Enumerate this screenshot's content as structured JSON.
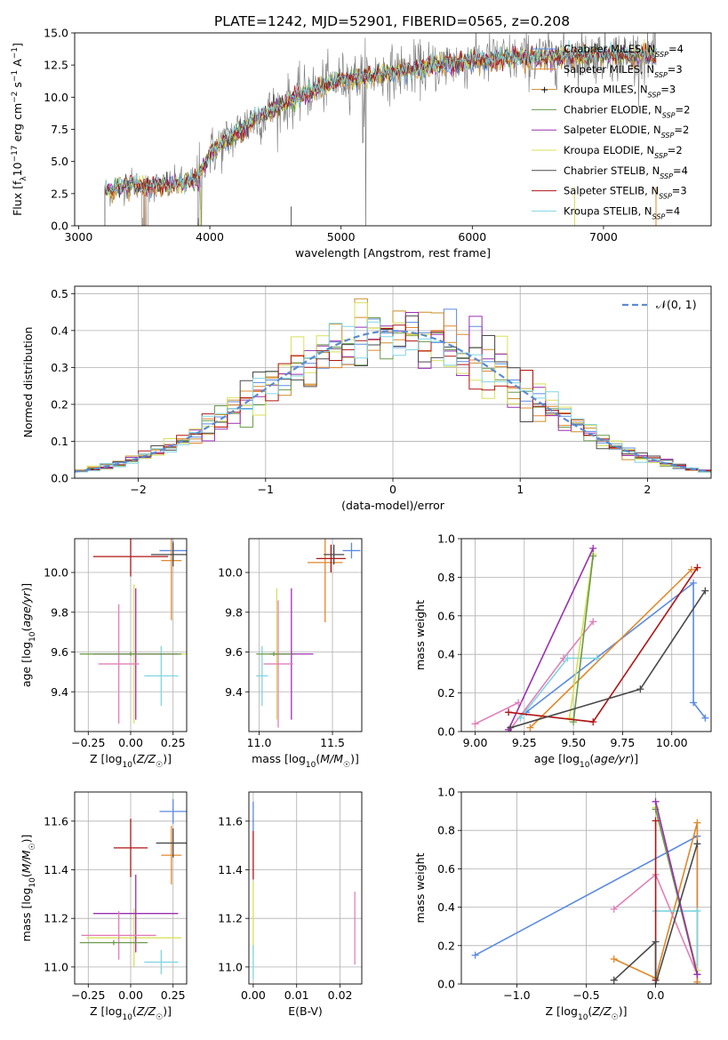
{
  "figure": {
    "title": "PLATE=1242, MJD=52901, FIBERID=0565, z=0.208"
  },
  "legend": {
    "series": [
      {
        "label": "Chabrier MILES, N",
        "sub": "SSP",
        "eq": "=4",
        "color": "#5b8be0"
      },
      {
        "label": "Salpeter MILES, N",
        "sub": "SSP",
        "eq": "=3",
        "color": "#e0882b"
      },
      {
        "label": "Kroupa MILES, N",
        "sub": "SSP",
        "eq": "=3",
        "color": "#c98e2a"
      },
      {
        "label": "Chabrier ELODIE, N",
        "sub": "SSP",
        "eq": "=2",
        "color": "#6a9a4a"
      },
      {
        "label": "Salpeter ELODIE, N",
        "sub": "SSP",
        "eq": "=2",
        "color": "#9b30b0"
      },
      {
        "label": "Kroupa ELODIE, N",
        "sub": "SSP",
        "eq": "=2",
        "color": "#d8e05a"
      },
      {
        "label": "Chabrier STELIB, N",
        "sub": "SSP",
        "eq": "=4",
        "color": "#4a4a4a"
      },
      {
        "label": "Salpeter STELIB, N",
        "sub": "SSP",
        "eq": "=3",
        "color": "#b01515"
      },
      {
        "label": "Kroupa STELIB, N",
        "sub": "SSP",
        "eq": "=4",
        "color": "#7fd6e0"
      }
    ],
    "gauss_label": "𝒩(0, 1)"
  },
  "chart_data": [
    {
      "id": "spectrum",
      "type": "line",
      "xlabel": "wavelength [Angstrom, rest frame]",
      "ylabel": "Flux [f_λ 10^-17 erg cm^-2 s^-1 A^-1]",
      "xlim": [
        2970,
        7820
      ],
      "ylim": [
        0,
        15
      ],
      "xticks": [
        3000,
        4000,
        5000,
        6000,
        7000
      ],
      "yticks": [
        0.0,
        2.5,
        5.0,
        7.5,
        10.0,
        12.5,
        15.0
      ],
      "data_range": [
        3200,
        7400
      ],
      "model_trend": {
        "x": [
          3200,
          3400,
          3500,
          3700,
          3900,
          4000,
          4300,
          4700,
          5000,
          5300,
          5700,
          6000,
          6300,
          6600,
          7000,
          7400
        ],
        "y": [
          2.6,
          3.3,
          3.0,
          3.2,
          3.6,
          5.6,
          8.0,
          10.2,
          11.4,
          11.8,
          12.4,
          12.8,
          13.0,
          13.1,
          13.3,
          13.2
        ]
      },
      "grid": false
    },
    {
      "id": "residuals",
      "type": "histogram",
      "xlabel": "(data-model)/error",
      "ylabel": "Normed distribution",
      "xlim": [
        -2.5,
        2.5
      ],
      "ylim": [
        0,
        0.52
      ],
      "xticks": [
        -2,
        -1,
        0,
        1,
        2
      ],
      "yticks": [
        0.0,
        0.1,
        0.2,
        0.3,
        0.4,
        0.5
      ],
      "bin_width": 0.1,
      "gaussian": {
        "mean": 0,
        "sigma": 1
      },
      "grid": true,
      "legend_position": "top-right"
    },
    {
      "id": "age-vs-Z",
      "type": "errorbar",
      "xlabel": "Z [log10(Z/Z☉)]",
      "ylabel": "age  [log10(age/yr)]",
      "xlim": [
        -0.33,
        0.33
      ],
      "ylim": [
        9.2,
        10.17
      ],
      "xticks": [
        -0.25,
        0.0,
        0.25
      ],
      "xtick_labels": [
        "−0.25",
        "0.00",
        "0.25"
      ],
      "yticks": [
        9.4,
        9.6,
        9.8,
        10.0
      ],
      "points": [
        {
          "x": 0.25,
          "y": 10.11,
          "xerr": 0.08,
          "yerr": 0.05,
          "color": "#5b8be0"
        },
        {
          "x": 0.24,
          "y": 10.06,
          "xerr": 0.06,
          "yerr": 0.3,
          "color": "#e0882b"
        },
        {
          "x": 0.18,
          "y": 9.48,
          "xerr": 0.1,
          "yerr": 0.15,
          "color": "#7fd6e0"
        },
        {
          "x": 0.02,
          "y": 9.59,
          "xerr": 0.32,
          "yerr": 0.35,
          "color": "#d8e05a"
        },
        {
          "x": 0.03,
          "y": 9.59,
          "xerr": 0.25,
          "yerr": 0.33,
          "color": "#9b30b0"
        },
        {
          "x": -0.07,
          "y": 9.54,
          "xerr": 0.12,
          "yerr": 0.3,
          "color": "#e080b8"
        },
        {
          "x": 0.0,
          "y": 9.59,
          "xerr": 0.3,
          "yerr": 0.01,
          "color": "#6a9a4a"
        },
        {
          "x": 0.0,
          "y": 10.08,
          "xerr": 0.22,
          "yerr": 0.1,
          "color": "#b01515"
        },
        {
          "x": 0.25,
          "y": 10.09,
          "xerr": 0.13,
          "yerr": 0.06,
          "color": "#4a4a4a"
        }
      ],
      "grid": true
    },
    {
      "id": "age-vs-mass",
      "type": "errorbar",
      "xlabel": "mass [log10(M/M☉)]",
      "xlim": [
        10.93,
        11.7
      ],
      "ylim": [
        9.2,
        10.17
      ],
      "xticks": [
        11.0,
        11.5
      ],
      "yticks": [
        9.4,
        9.6,
        9.8,
        10.0
      ],
      "points": [
        {
          "x": 11.63,
          "y": 10.11,
          "xerr": 0.06,
          "yerr": 0.04,
          "color": "#5b8be0"
        },
        {
          "x": 11.45,
          "y": 10.05,
          "xerr": 0.12,
          "yerr": 0.3,
          "color": "#e0882b"
        },
        {
          "x": 11.02,
          "y": 9.48,
          "xerr": 0.04,
          "yerr": 0.15,
          "color": "#7fd6e0"
        },
        {
          "x": 11.12,
          "y": 9.59,
          "xerr": 0.13,
          "yerr": 0.33,
          "color": "#d8e05a"
        },
        {
          "x": 11.22,
          "y": 9.59,
          "xerr": 0.15,
          "yerr": 0.33,
          "color": "#9b30b0"
        },
        {
          "x": 11.13,
          "y": 9.54,
          "xerr": 0.1,
          "yerr": 0.32,
          "color": "#e080b8"
        },
        {
          "x": 11.1,
          "y": 9.59,
          "xerr": 0.12,
          "yerr": 0.01,
          "color": "#6a9a4a"
        },
        {
          "x": 11.49,
          "y": 10.07,
          "xerr": 0.1,
          "yerr": 0.07,
          "color": "#b01515"
        },
        {
          "x": 11.51,
          "y": 10.09,
          "xerr": 0.07,
          "yerr": 0.05,
          "color": "#4a4a4a"
        }
      ],
      "grid": true
    },
    {
      "id": "massweight-vs-age",
      "type": "line",
      "xlabel": "age  [log10(age/yr)]",
      "ylabel": "mass weight",
      "xlim": [
        8.93,
        10.2
      ],
      "ylim": [
        0,
        1.0
      ],
      "xticks": [
        9.0,
        9.25,
        9.5,
        9.75,
        10.0
      ],
      "yticks": [
        0.0,
        0.2,
        0.4,
        0.6,
        0.8,
        1.0
      ],
      "series": [
        {
          "x": [
            9.26,
            10.11,
            10.11,
            10.17
          ],
          "y": [
            0.1,
            0.77,
            0.15,
            0.07
          ],
          "color": "#5b8be0"
        },
        {
          "x": [
            9.28,
            10.1
          ],
          "y": [
            0.02,
            0.84
          ],
          "color": "#e0882b"
        },
        {
          "x": [
            9.17,
            9.45,
            9.6
          ],
          "y": [
            0.0,
            0.38,
            0.57
          ],
          "color": "#e080b8"
        },
        {
          "x": [
            9.23,
            9.47,
            9.62
          ],
          "y": [
            0.07,
            0.38,
            0.38
          ],
          "color": "#7fd6e0"
        },
        {
          "x": [
            9.48,
            9.6
          ],
          "y": [
            0.07,
            0.92
          ],
          "color": "#d8e05a"
        },
        {
          "x": [
            9.5,
            9.6
          ],
          "y": [
            0.05,
            0.91
          ],
          "color": "#6a9a4a"
        },
        {
          "x": [
            9.17,
            9.6
          ],
          "y": [
            0.01,
            0.95
          ],
          "color": "#9b30b0"
        },
        {
          "x": [
            9.17,
            9.6,
            10.13
          ],
          "y": [
            0.1,
            0.05,
            0.85
          ],
          "color": "#b01515"
        },
        {
          "x": [
            9.18,
            9.84,
            10.17
          ],
          "y": [
            0.02,
            0.22,
            0.73
          ],
          "color": "#4a4a4a"
        },
        {
          "x": [
            9.0,
            9.22
          ],
          "y": [
            0.04,
            0.15
          ],
          "color": "#e080b8"
        }
      ],
      "grid": true
    },
    {
      "id": "mass-vs-Z",
      "type": "errorbar",
      "xlabel": "Z [log10(Z/Z☉)]",
      "ylabel": "mass [log10(M/M☉)]",
      "xlim": [
        -0.33,
        0.33
      ],
      "ylim": [
        10.93,
        11.72
      ],
      "xticks": [
        -0.25,
        0.0,
        0.25
      ],
      "xtick_labels": [
        "−0.25",
        "0.00",
        "0.25"
      ],
      "yticks": [
        11.0,
        11.2,
        11.4,
        11.6
      ],
      "points": [
        {
          "x": 0.25,
          "y": 11.64,
          "xerr": 0.08,
          "yerr": 0.05,
          "color": "#5b8be0"
        },
        {
          "x": 0.24,
          "y": 11.46,
          "xerr": 0.06,
          "yerr": 0.12,
          "color": "#e0882b"
        },
        {
          "x": 0.18,
          "y": 11.02,
          "xerr": 0.1,
          "yerr": 0.05,
          "color": "#7fd6e0"
        },
        {
          "x": 0.02,
          "y": 11.12,
          "xerr": 0.28,
          "yerr": 0.12,
          "color": "#d8e05a"
        },
        {
          "x": 0.03,
          "y": 11.22,
          "xerr": 0.25,
          "yerr": 0.16,
          "color": "#9b30b0"
        },
        {
          "x": -0.07,
          "y": 11.13,
          "xerr": 0.22,
          "yerr": 0.1,
          "color": "#e080b8"
        },
        {
          "x": -0.1,
          "y": 11.1,
          "xerr": 0.2,
          "yerr": 0.01,
          "color": "#6a9a4a"
        },
        {
          "x": 0.0,
          "y": 11.49,
          "xerr": 0.1,
          "yerr": 0.12,
          "color": "#b01515"
        },
        {
          "x": 0.25,
          "y": 11.51,
          "xerr": 0.1,
          "yerr": 0.06,
          "color": "#4a4a4a"
        }
      ],
      "grid": true
    },
    {
      "id": "mass-vs-EBV",
      "type": "errorbar",
      "xlabel": "E(B-V)",
      "xlim": [
        -0.001,
        0.025
      ],
      "ylim": [
        10.93,
        11.72
      ],
      "xticks": [
        0.0,
        0.01,
        0.02
      ],
      "yticks": [
        11.0,
        11.2,
        11.4,
        11.6
      ],
      "points": [
        {
          "x": 0.0,
          "y": 11.62,
          "xerr": 0.0,
          "yerr": 0.06,
          "color": "#5b8be0"
        },
        {
          "x": 0.0,
          "y": 11.46,
          "xerr": 0.0,
          "yerr": 0.1,
          "color": "#b01515"
        },
        {
          "x": 0.0,
          "y": 11.2,
          "xerr": 0.0,
          "yerr": 0.15,
          "color": "#d8e05a"
        },
        {
          "x": 0.0,
          "y": 11.02,
          "xerr": 0.0,
          "yerr": 0.07,
          "color": "#7fd6e0"
        },
        {
          "x": 0.0234,
          "y": 11.16,
          "xerr": 0.0,
          "yerr": 0.15,
          "color": "#e080b8"
        }
      ],
      "grid": true
    },
    {
      "id": "massweight-vs-Z",
      "type": "line",
      "xlabel": "Z [log10(Z/Z☉)]",
      "ylabel": "mass weight",
      "xlim": [
        -1.4,
        0.4
      ],
      "ylim": [
        0,
        1.0
      ],
      "xticks": [
        -1.0,
        -0.5,
        0.0
      ],
      "xtick_labels": [
        "−1.0",
        "−0.5",
        "0.0"
      ],
      "yticks": [
        0.0,
        0.2,
        0.4,
        0.6,
        0.8,
        1.0
      ],
      "series": [
        {
          "x": [
            -1.3,
            0.3,
            0.3
          ],
          "y": [
            0.15,
            0.77,
            0.01
          ],
          "color": "#5b8be0"
        },
        {
          "x": [
            -0.3,
            0.0,
            0.3,
            0.3
          ],
          "y": [
            0.13,
            0.03,
            0.84,
            0.01
          ],
          "color": "#e0882b"
        },
        {
          "x": [
            -0.3,
            0.0,
            0.3
          ],
          "y": [
            0.39,
            0.57,
            0.05
          ],
          "color": "#e080b8"
        },
        {
          "x": [
            0.0,
            0.3,
            0.3
          ],
          "y": [
            0.38,
            0.38,
            0.07
          ],
          "color": "#7fd6e0"
        },
        {
          "x": [
            0.0,
            0.3
          ],
          "y": [
            0.92,
            0.07
          ],
          "color": "#d8e05a"
        },
        {
          "x": [
            0.0,
            0.3
          ],
          "y": [
            0.91,
            0.05
          ],
          "color": "#6a9a4a"
        },
        {
          "x": [
            0.0,
            0.3
          ],
          "y": [
            0.95,
            0.05
          ],
          "color": "#9b30b0"
        },
        {
          "x": [
            0.0,
            0.0
          ],
          "y": [
            0.85,
            0.02
          ],
          "color": "#b01515"
        },
        {
          "x": [
            -0.3,
            0.0,
            0.0,
            0.3
          ],
          "y": [
            0.02,
            0.22,
            0.0,
            0.73
          ],
          "color": "#4a4a4a"
        }
      ],
      "grid": true
    }
  ]
}
